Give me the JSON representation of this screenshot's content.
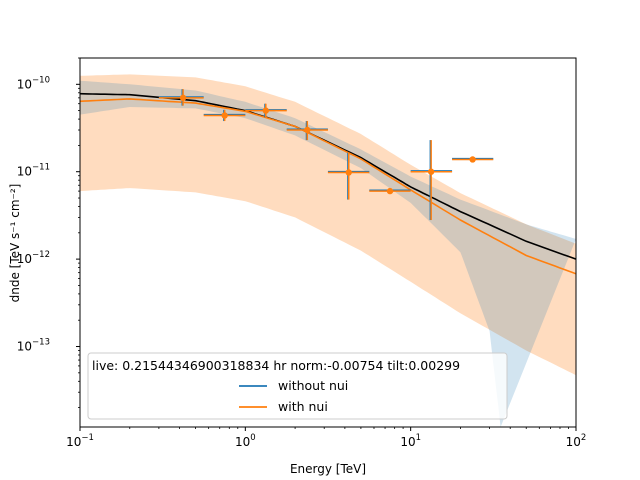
{
  "chart_data": {
    "type": "line",
    "xlabel": "Energy [TeV]",
    "ylabel": "dnde [TeV s⁻¹ cm⁻²]",
    "xscale": "log",
    "yscale": "log",
    "xlim": [
      0.1,
      100
    ],
    "ylim": [
      1.2e-14,
      2e-10
    ],
    "x_ticks": [
      {
        "value": 0.1,
        "base": "10",
        "exp": "−1"
      },
      {
        "value": 1,
        "base": "10",
        "exp": "0"
      },
      {
        "value": 10,
        "base": "10",
        "exp": "1"
      },
      {
        "value": 100,
        "base": "10",
        "exp": "2"
      }
    ],
    "y_ticks": [
      {
        "value": 1e-13,
        "base": "10",
        "exp": "−13"
      },
      {
        "value": 1e-12,
        "base": "10",
        "exp": "−12"
      },
      {
        "value": 1e-11,
        "base": "10",
        "exp": "−11"
      },
      {
        "value": 1e-10,
        "base": "10",
        "exp": "−10"
      }
    ],
    "legend": {
      "title": "live: 0.21544346900318834 hr norm:-0.00754 tilt:0.00299",
      "placement": "lower-center",
      "entries": [
        {
          "label": "without nui",
          "color": "#1f77b4"
        },
        {
          "label": "with nui",
          "color": "#ff7f0e"
        }
      ]
    },
    "series": [
      {
        "name": "without nui",
        "color": "#1f77b4",
        "band_color": "#1f77b4",
        "model_line_color": "#000000",
        "model": {
          "x": [
            0.1,
            0.2,
            0.5,
            1,
            2,
            5,
            10,
            20,
            50,
            100
          ],
          "y": [
            7.8e-11,
            7.6e-11,
            6.5e-11,
            5e-11,
            3.3e-11,
            1.45e-11,
            6.7e-12,
            3.5e-12,
            1.6e-12,
            1e-12
          ]
        },
        "band_upper": {
          "x": [
            0.1,
            0.2,
            0.5,
            1,
            2,
            5,
            10,
            20,
            50,
            100
          ],
          "y": [
            1.1e-10,
            1e-10,
            8.5e-11,
            6.3e-11,
            4.1e-11,
            1.8e-11,
            8.8e-12,
            4.8e-12,
            2.5e-12,
            1.7e-12
          ]
        },
        "band_lower": {
          "x": [
            0.1,
            0.2,
            0.5,
            1,
            2,
            5,
            10,
            20,
            30,
            35
          ],
          "y": [
            4.5e-11,
            5.5e-11,
            5.3e-11,
            4.1e-11,
            2.6e-11,
            1.1e-11,
            4.4e-12,
            1.2e-12,
            1.5e-13,
            1.2e-14
          ]
        }
      },
      {
        "name": "with nui",
        "color": "#ff7f0e",
        "band_color": "#ffdcbf",
        "model": {
          "x": [
            0.1,
            0.2,
            0.5,
            1,
            2,
            5,
            10,
            20,
            50,
            100
          ],
          "y": [
            6.4e-11,
            6.8e-11,
            6.1e-11,
            4.9e-11,
            3.3e-11,
            1.4e-11,
            6.2e-12,
            2.8e-12,
            1.1e-12,
            6.8e-13
          ]
        },
        "band_upper": {
          "x": [
            0.1,
            0.2,
            0.5,
            1,
            2,
            5,
            10,
            20,
            50,
            100
          ],
          "y": [
            1.25e-10,
            1.3e-10,
            1.2e-10,
            9.5e-11,
            6.3e-11,
            2.7e-11,
            1.2e-11,
            5.7e-12,
            2.5e-12,
            1.5e-12
          ]
        },
        "band_lower": {
          "x": [
            0.1,
            0.2,
            0.5,
            1,
            2,
            5,
            10,
            20,
            50,
            100
          ],
          "y": [
            6e-12,
            6.5e-12,
            5.8e-12,
            4.6e-12,
            3e-12,
            1.25e-12,
            5.5e-13,
            2.4e-13,
            9e-14,
            4.7e-14
          ]
        }
      }
    ],
    "flux_points": {
      "color": "#ff7f0e",
      "points": [
        {
          "e": 0.42,
          "e_min": 0.3,
          "e_max": 0.56,
          "y": 7e-11,
          "y_lo": 5.7e-11,
          "y_hi": 8.8e-11
        },
        {
          "e": 0.75,
          "e_min": 0.56,
          "e_max": 1.0,
          "y": 4.4e-11,
          "y_lo": 3.8e-11,
          "y_hi": 5.1e-11
        },
        {
          "e": 1.33,
          "e_min": 1.0,
          "e_max": 1.78,
          "y": 5e-11,
          "y_lo": 4.2e-11,
          "y_hi": 6e-11
        },
        {
          "e": 2.37,
          "e_min": 1.78,
          "e_max": 3.16,
          "y": 3e-11,
          "y_lo": 2.3e-11,
          "y_hi": 3.8e-11
        },
        {
          "e": 4.22,
          "e_min": 3.16,
          "e_max": 5.62,
          "y": 9.8e-12,
          "y_lo": 4.8e-12,
          "y_hi": 1.65e-11
        },
        {
          "e": 7.5,
          "e_min": 5.62,
          "e_max": 10.0,
          "y": 6e-12,
          "y_lo": 5.6e-12,
          "y_hi": 6.4e-12
        },
        {
          "e": 13.3,
          "e_min": 10.0,
          "e_max": 17.8,
          "y": 1e-11,
          "y_lo": 2.8e-12,
          "y_hi": 2.3e-11
        },
        {
          "e": 23.7,
          "e_min": 17.8,
          "e_max": 31.6,
          "y": 1.38e-11,
          "y_lo": 1.33e-11,
          "y_hi": 1.43e-11
        }
      ]
    }
  }
}
